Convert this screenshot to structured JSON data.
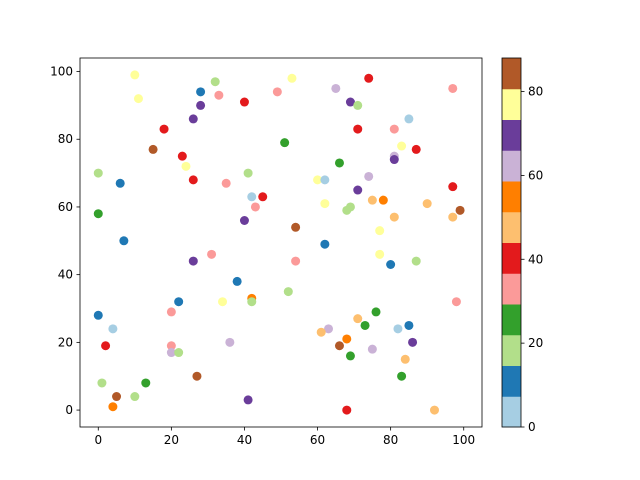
{
  "chart_data": {
    "type": "scatter",
    "x": [
      10,
      11,
      32,
      53,
      28,
      33,
      28,
      40,
      49,
      65,
      69,
      71,
      74,
      97,
      85,
      26,
      18,
      71,
      81,
      15,
      51,
      83,
      87,
      23,
      24,
      81,
      81,
      66,
      0,
      26,
      35,
      41,
      60,
      62,
      74,
      6,
      71,
      97,
      42,
      45,
      43,
      62,
      68,
      69,
      75,
      78,
      90,
      97,
      99,
      0,
      81,
      40,
      54,
      77,
      7,
      62,
      77,
      31,
      26,
      54,
      80,
      87,
      38,
      42,
      42,
      34,
      22,
      52,
      98,
      0,
      20,
      71,
      76,
      73,
      82,
      85,
      63,
      61,
      4,
      68,
      86,
      66,
      36,
      20,
      20,
      22,
      2,
      75,
      69,
      84,
      27,
      83,
      1,
      13,
      5,
      10,
      41,
      4,
      68,
      92
    ],
    "y": [
      99,
      92,
      97,
      98,
      94,
      93,
      90,
      91,
      94,
      95,
      91,
      90,
      98,
      95,
      86,
      86,
      83,
      83,
      83,
      77,
      79,
      78,
      77,
      75,
      72,
      75,
      74,
      73,
      70,
      68,
      67,
      70,
      68,
      68,
      69,
      67,
      65,
      66,
      63,
      63,
      60,
      61,
      59,
      60,
      62,
      62,
      61,
      57,
      59,
      58,
      57,
      56,
      54,
      53,
      50,
      49,
      46,
      46,
      44,
      44,
      43,
      44,
      38,
      33,
      32,
      32,
      32,
      35,
      32,
      28,
      29,
      27,
      29,
      25,
      24,
      25,
      24,
      23,
      24,
      21,
      20,
      19,
      20,
      19,
      17,
      17,
      19,
      18,
      16,
      15,
      10,
      10,
      8,
      8,
      4,
      4,
      3,
      1,
      0,
      0
    ],
    "c": [
      77,
      77,
      18,
      77,
      11,
      33,
      70,
      40,
      33,
      62,
      70,
      18,
      40,
      33,
      4,
      70,
      40,
      40,
      33,
      84,
      26,
      77,
      40,
      40,
      77,
      62,
      70,
      26,
      18,
      40,
      33,
      18,
      77,
      4,
      62,
      11,
      70,
      40,
      4,
      40,
      33,
      77,
      18,
      18,
      48,
      55,
      48,
      48,
      84,
      26,
      48,
      70,
      84,
      77,
      11,
      11,
      77,
      33,
      70,
      33,
      11,
      18,
      11,
      55,
      18,
      77,
      11,
      18,
      33,
      11,
      33,
      48,
      26,
      26,
      4,
      11,
      62,
      48,
      4,
      55,
      70,
      84,
      62,
      33,
      62,
      18,
      40,
      62,
      26,
      48,
      84,
      26,
      18,
      26,
      84,
      18,
      70,
      55,
      40,
      48
    ],
    "colormap": [
      "#a6cee3",
      "#1f78b4",
      "#b2df8a",
      "#33a02c",
      "#fb9a99",
      "#e31a1c",
      "#fdbf6f",
      "#ff7f00",
      "#cab2d6",
      "#6a3d9a",
      "#ffff99",
      "#b15928"
    ],
    "clim": [
      0,
      88
    ],
    "cticks": [
      0,
      20,
      40,
      60,
      80
    ],
    "xlim": [
      -5,
      105
    ],
    "ylim": [
      -5,
      104
    ],
    "xticks": [
      0,
      20,
      40,
      60,
      80,
      100
    ],
    "yticks": [
      0,
      20,
      40,
      60,
      80,
      100
    ]
  }
}
